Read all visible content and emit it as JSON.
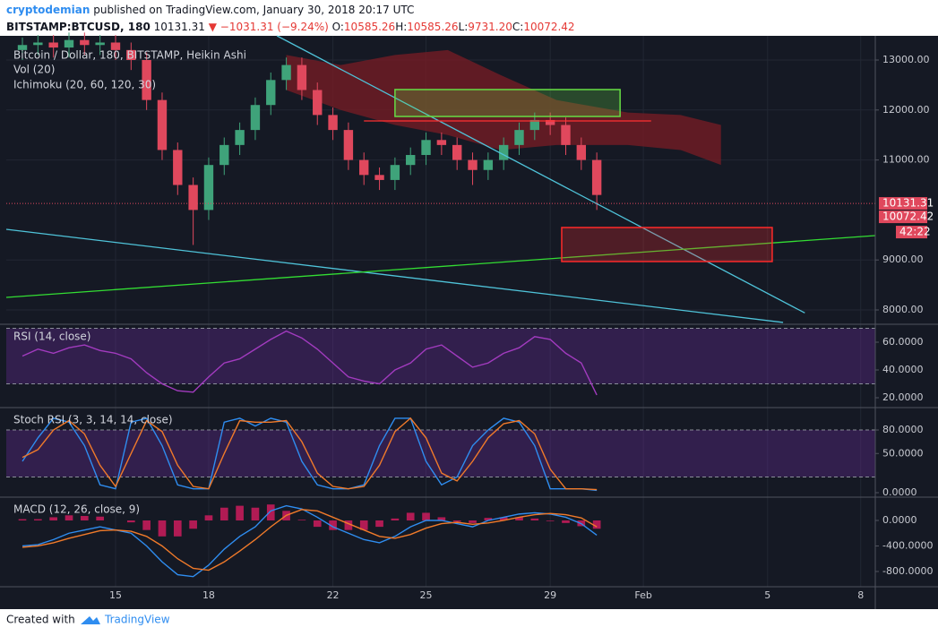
{
  "header": {
    "author": "cryptodemian",
    "published": "published on TradingView.com, January 30, 2018 20:17 UTC",
    "symbol": "BITSTAMP:BTCUSD, 180",
    "last": "10131.31",
    "change": "−1031.31 (−9.24%)",
    "ohlc": [
      {
        "key": "O:",
        "value": "10585.26"
      },
      {
        "key": "H:",
        "value": "10585.26"
      },
      {
        "key": "L:",
        "value": "9731.20"
      },
      {
        "key": "C:",
        "value": "10072.42"
      }
    ]
  },
  "footer": {
    "created": "Created with",
    "brand": "TradingView"
  },
  "chart_data": [
    {
      "type": "candlestick",
      "title": "Bitcoin / Dollar, 180, BITSTAMP, Heikin Ashi",
      "legend": [
        "Vol (20)",
        "Ichimoku (20, 60, 120, 30)"
      ],
      "x": [
        12,
        12.5,
        13,
        13.5,
        14,
        14.5,
        15,
        15.5,
        16,
        16.5,
        17,
        17.5,
        18,
        18.5,
        19,
        19.5,
        20,
        20.5,
        21,
        21.5,
        22,
        22.5,
        23,
        23.5,
        24,
        24.5,
        25,
        25.5,
        26,
        26.5,
        27,
        27.5,
        28,
        28.5,
        29,
        29.5,
        30,
        30.5
      ],
      "open": [
        13200,
        13300,
        13350,
        13250,
        13400,
        13300,
        13350,
        13200,
        13000,
        12200,
        11200,
        10500,
        10000,
        10900,
        11300,
        11600,
        12100,
        12600,
        12900,
        12400,
        11900,
        11600,
        11000,
        10700,
        10600,
        10900,
        11100,
        11400,
        11300,
        11000,
        10800,
        11000,
        11300,
        11600,
        11800,
        11700,
        11300,
        11000
      ],
      "high": [
        13450,
        13500,
        13500,
        13550,
        13550,
        13500,
        13500,
        13350,
        13150,
        12350,
        11350,
        10650,
        11050,
        11450,
        11750,
        12250,
        12750,
        13050,
        13050,
        12550,
        12050,
        11750,
        11150,
        10850,
        11050,
        11250,
        11550,
        11550,
        11450,
        11150,
        11150,
        11450,
        11750,
        11950,
        11950,
        11850,
        11450,
        11150
      ],
      "low": [
        13000,
        13100,
        13050,
        13050,
        13100,
        13100,
        13000,
        12800,
        12000,
        11000,
        10300,
        9300,
        9800,
        10700,
        11100,
        11400,
        11900,
        12400,
        12200,
        11700,
        11400,
        10800,
        10500,
        10400,
        10400,
        10700,
        10900,
        11100,
        10800,
        10500,
        10600,
        10800,
        11100,
        11400,
        11500,
        11100,
        10800,
        10000
      ],
      "close": [
        13300,
        13350,
        13250,
        13400,
        13300,
        13350,
        13200,
        13000,
        12200,
        11200,
        10500,
        10000,
        10900,
        11300,
        11600,
        12100,
        12600,
        12900,
        12400,
        11900,
        11600,
        11000,
        10700,
        10600,
        10900,
        11100,
        11400,
        11300,
        11000,
        10800,
        11000,
        11300,
        11600,
        11800,
        11700,
        11300,
        11000,
        10300
      ],
      "up_color": "#3fa37a",
      "down_color": "#e0485d",
      "cloud": {
        "x": [
          20.5,
          22.25,
          24,
          25.7,
          27.4,
          29.2,
          31.5,
          33.2,
          34.5
        ],
        "upper": [
          13100,
          12900,
          13100,
          13200,
          12700,
          12200,
          11950,
          11900,
          11700
        ],
        "lower": [
          12400,
          12000,
          11700,
          11500,
          11200,
          11300,
          11300,
          11200,
          10900
        ],
        "color": "#7a1c24"
      },
      "drawings": [
        {
          "type": "line",
          "x1": 20.2,
          "y1": 13484,
          "x2": 37.2,
          "y2": 7940,
          "color": "#4fc3d9"
        },
        {
          "type": "line",
          "x1": 11.48,
          "y1": 9613,
          "x2": 36.5,
          "y2": 7750,
          "color": "#4fc3d9"
        },
        {
          "type": "line",
          "x1": 11.48,
          "y1": 8251,
          "x2": 39.47,
          "y2": 9487,
          "color": "#33dd33"
        },
        {
          "type": "line",
          "x1": 23.0,
          "y1": 11781,
          "x2": 32.25,
          "y2": 11781,
          "color": "#ff3030"
        },
        {
          "type": "rect",
          "x1": 24.0,
          "y1": 12409,
          "x2": 31.25,
          "y2": 11871,
          "color": "#66dd44"
        },
        {
          "type": "rect",
          "x1": 29.37,
          "y1": 9649,
          "x2": 36.15,
          "y2": 8968,
          "color": "#ff2a2a"
        }
      ],
      "last_price": 10131.31,
      "close_price": 10072.42,
      "countdown": "42:22",
      "xlim": [
        11.48,
        39.47
      ],
      "xticks": [
        15,
        18,
        22,
        25,
        29,
        {
          "value": 32,
          "label": "Feb"
        },
        {
          "value": 36,
          "label": "5"
        },
        {
          "value": 39,
          "label": "8"
        }
      ],
      "ylim": [
        7713,
        13484
      ],
      "yticks": [
        {
          "value": 13000,
          "label": "13000.00"
        },
        {
          "value": 12000,
          "label": "12000.00"
        },
        {
          "value": 11000,
          "label": "11000.00"
        },
        {
          "value": 9000,
          "label": "9000.00"
        },
        {
          "value": 8000,
          "label": "8000.00"
        }
      ],
      "grid": true
    },
    {
      "type": "line",
      "title": "RSI (14, close)",
      "x": [
        12,
        12.5,
        13,
        13.5,
        14,
        14.5,
        15,
        15.5,
        16,
        16.5,
        17,
        17.5,
        18,
        18.5,
        19,
        19.5,
        20,
        20.5,
        21,
        21.5,
        22,
        22.5,
        23,
        23.5,
        24,
        24.5,
        25,
        25.5,
        26,
        26.5,
        27,
        27.5,
        28,
        28.5,
        29,
        29.5,
        30,
        30.5
      ],
      "series": [
        {
          "color": "#a23bbf",
          "values": [
            50,
            55,
            52,
            56,
            58,
            54,
            52,
            48,
            38,
            30,
            25,
            24,
            35,
            45,
            48,
            55,
            62,
            68,
            63,
            55,
            45,
            35,
            32,
            30,
            40,
            45,
            55,
            58,
            50,
            42,
            45,
            52,
            56,
            64,
            62,
            52,
            45,
            22
          ]
        }
      ],
      "band": [
        30,
        70
      ],
      "ylim": [
        12.9,
        72.9
      ],
      "yticks": [
        {
          "value": 60,
          "label": "60.0000"
        },
        {
          "value": 40,
          "label": "40.0000"
        },
        {
          "value": 20,
          "label": "20.0000"
        }
      ]
    },
    {
      "type": "line",
      "title": "Stoch RSI (3, 3, 14, 14, close)",
      "x": [
        12,
        12.5,
        13,
        13.5,
        14,
        14.5,
        15,
        15.5,
        16,
        16.5,
        17,
        17.5,
        18,
        18.5,
        19,
        19.5,
        20,
        20.5,
        21,
        21.5,
        22,
        22.5,
        23,
        23.5,
        24,
        24.5,
        25,
        25.5,
        26,
        26.5,
        27,
        27.5,
        28,
        28.5,
        29,
        29.5,
        30,
        30.5
      ],
      "series": [
        {
          "color": "#2f8df0",
          "values": [
            40,
            70,
            95,
            90,
            60,
            10,
            5,
            90,
            95,
            60,
            10,
            5,
            5,
            90,
            95,
            85,
            95,
            90,
            40,
            10,
            5,
            5,
            10,
            60,
            95,
            95,
            40,
            10,
            20,
            60,
            80,
            95,
            90,
            60,
            5,
            5,
            5,
            3
          ]
        },
        {
          "color": "#f07a2a",
          "values": [
            45,
            55,
            80,
            92,
            75,
            35,
            8,
            50,
            92,
            78,
            35,
            8,
            5,
            50,
            92,
            90,
            90,
            92,
            65,
            25,
            8,
            5,
            8,
            35,
            78,
            95,
            70,
            25,
            15,
            40,
            70,
            88,
            92,
            75,
            30,
            5,
            5,
            4
          ]
        }
      ],
      "band": [
        20,
        80
      ],
      "ylim": [
        -5.7,
        108.6
      ],
      "yticks": [
        {
          "value": 80,
          "label": "80.0000"
        },
        {
          "value": 50,
          "label": "50.0000"
        },
        {
          "value": 0,
          "label": "0.0000"
        }
      ]
    },
    {
      "type": "line",
      "title": "MACD (12, 26, close, 9)",
      "x": [
        12,
        12.5,
        13,
        13.5,
        14,
        14.5,
        15,
        15.5,
        16,
        16.5,
        17,
        17.5,
        18,
        18.5,
        19,
        19.5,
        20,
        20.5,
        21,
        21.5,
        22,
        22.5,
        23,
        23.5,
        24,
        24.5,
        25,
        25.5,
        26,
        26.5,
        27,
        27.5,
        28,
        28.5,
        29,
        29.5,
        30,
        30.5
      ],
      "series": [
        {
          "color": "#2f8df0",
          "values": [
            -400,
            -380,
            -300,
            -200,
            -150,
            -100,
            -150,
            -200,
            -400,
            -650,
            -850,
            -880,
            -700,
            -450,
            -250,
            -100,
            150,
            230,
            180,
            50,
            -100,
            -200,
            -300,
            -350,
            -250,
            -100,
            0,
            0,
            -50,
            -100,
            0,
            50,
            100,
            120,
            100,
            50,
            -50,
            -230
          ]
        },
        {
          "color": "#f07a2a",
          "values": [
            -420,
            -400,
            -350,
            -280,
            -220,
            -160,
            -150,
            -170,
            -250,
            -400,
            -600,
            -750,
            -780,
            -650,
            -480,
            -300,
            -100,
            80,
            170,
            150,
            50,
            -50,
            -150,
            -250,
            -280,
            -220,
            -120,
            -50,
            -30,
            -60,
            -40,
            0,
            50,
            90,
            110,
            90,
            40,
            -100
          ]
        }
      ],
      "histogram": {
        "color": "#d81b60",
        "values": [
          20,
          20,
          50,
          80,
          70,
          60,
          0,
          -30,
          -150,
          -250,
          -250,
          -130,
          80,
          200,
          230,
          200,
          250,
          150,
          10,
          -100,
          -150,
          -150,
          -150,
          -100,
          30,
          120,
          120,
          50,
          -20,
          -40,
          40,
          50,
          50,
          30,
          -10,
          -40,
          -90,
          -130
        ]
      },
      "ylim": [
        -1039,
        365
      ],
      "yticks": [
        {
          "value": 0,
          "label": "0.0000"
        },
        {
          "value": -400,
          "label": "-400.0000"
        },
        {
          "value": -800,
          "label": "-800.0000"
        }
      ]
    }
  ]
}
